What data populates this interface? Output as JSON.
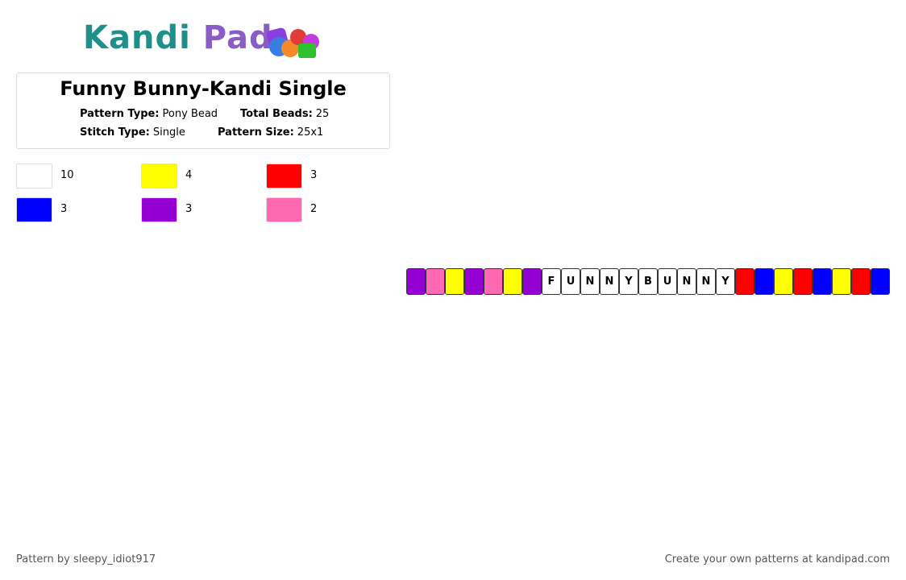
{
  "logo": {
    "text_a": "Kandi",
    "text_b": "Pad"
  },
  "title": "Funny Bunny-Kandi Single",
  "info": [
    {
      "label": "Pattern Type:",
      "value": "Pony Bead"
    },
    {
      "label": "Total Beads:",
      "value": "25"
    },
    {
      "label": "Stitch Type:",
      "value": "Single"
    },
    {
      "label": "Pattern Size:",
      "value": "25x1"
    }
  ],
  "palette": [
    {
      "color": "#ffffff",
      "count": 10
    },
    {
      "color": "#ffff00",
      "count": 4
    },
    {
      "color": "#ff0000",
      "count": 3
    },
    {
      "color": "#0000ff",
      "count": 3
    },
    {
      "color": "#9400d3",
      "count": 3
    },
    {
      "color": "#ff69b4",
      "count": 2
    }
  ],
  "beads": [
    {
      "color": "#9400d3"
    },
    {
      "color": "#ff69b4"
    },
    {
      "color": "#ffff00"
    },
    {
      "color": "#9400d3"
    },
    {
      "color": "#ff69b4"
    },
    {
      "color": "#ffff00"
    },
    {
      "color": "#9400d3"
    },
    {
      "color": "#ffffff",
      "letter": "F"
    },
    {
      "color": "#ffffff",
      "letter": "U"
    },
    {
      "color": "#ffffff",
      "letter": "N"
    },
    {
      "color": "#ffffff",
      "letter": "N"
    },
    {
      "color": "#ffffff",
      "letter": "Y"
    },
    {
      "color": "#ffffff",
      "letter": "B"
    },
    {
      "color": "#ffffff",
      "letter": "U"
    },
    {
      "color": "#ffffff",
      "letter": "N"
    },
    {
      "color": "#ffffff",
      "letter": "N"
    },
    {
      "color": "#ffffff",
      "letter": "Y"
    },
    {
      "color": "#ff0000"
    },
    {
      "color": "#0000ff"
    },
    {
      "color": "#ffff00"
    },
    {
      "color": "#ff0000"
    },
    {
      "color": "#0000ff"
    },
    {
      "color": "#ffff00"
    },
    {
      "color": "#ff0000"
    },
    {
      "color": "#0000ff"
    }
  ],
  "footer": {
    "left": "Pattern by sleepy_idiot917",
    "right": "Create your own patterns at kandipad.com"
  }
}
